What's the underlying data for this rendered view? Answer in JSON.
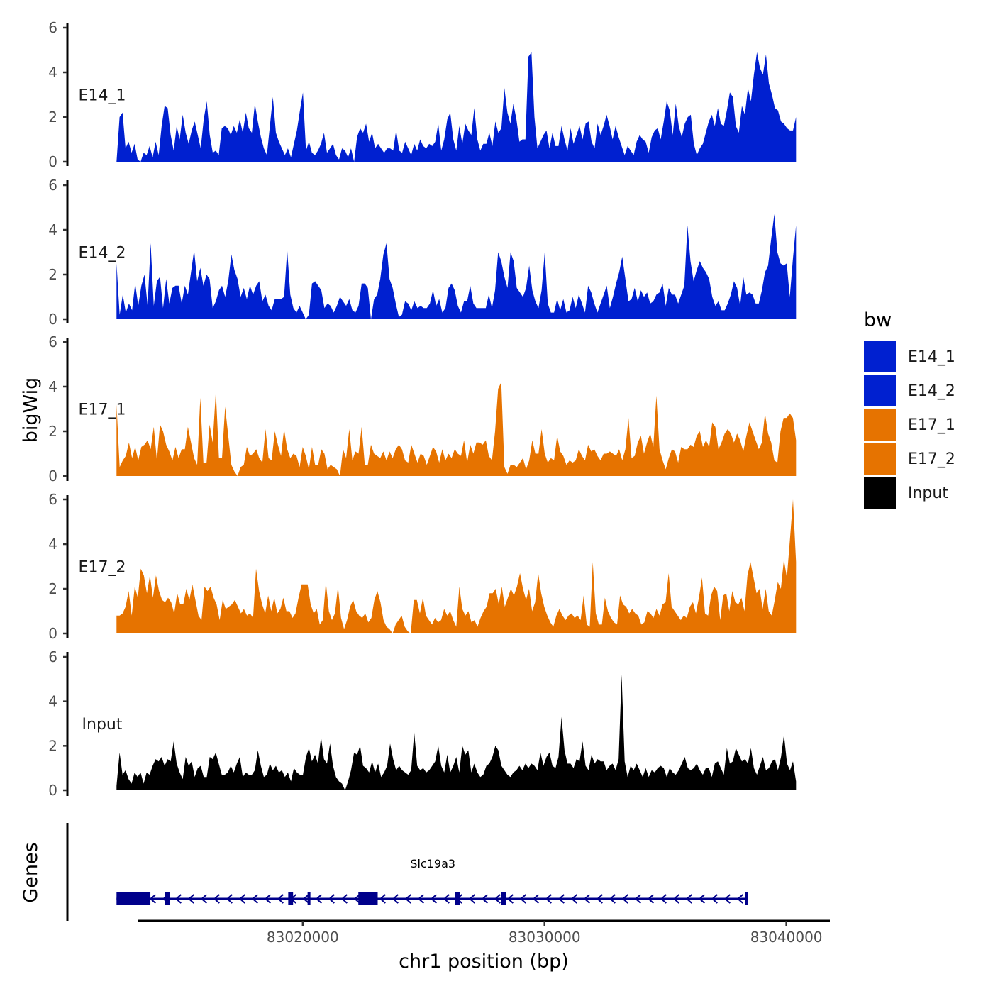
{
  "chart_data": {
    "type": "area",
    "chromosome": "chr1",
    "xlabel": "chr1 position (bp)",
    "ylabel": "bigWig",
    "genes_label": "Genes",
    "xlim": [
      83013200,
      83041800
    ],
    "region": [
      83012300,
      83040400
    ],
    "ylim": [
      0,
      6
    ],
    "yticks": [
      0,
      2,
      4,
      6
    ],
    "xticks": [
      {
        "value": 83020000,
        "label": "83020000"
      },
      {
        "value": 83030000,
        "label": "83030000"
      },
      {
        "value": 83040000,
        "label": "83040000"
      }
    ],
    "legend": {
      "title": "bw",
      "position": "right",
      "entries": [
        {
          "label": "E14_1",
          "color": "#0020D0"
        },
        {
          "label": "E14_2",
          "color": "#0020D0"
        },
        {
          "label": "E17_1",
          "color": "#E67300"
        },
        {
          "label": "E17_2",
          "color": "#E67300"
        },
        {
          "label": "Input",
          "color": "#000000"
        }
      ]
    },
    "series": [
      {
        "name": "E14_1",
        "color": "#0020D0",
        "x_start": 83012300,
        "x_end": 83040400,
        "values": [
          0,
          2.0,
          2.2,
          0.6,
          0.9,
          0.4,
          0.8,
          0.1,
          0,
          0.4,
          0.3,
          0.7,
          0.2,
          0.9,
          0.3,
          1.6,
          2.5,
          2.4,
          1.2,
          0.5,
          1.6,
          1.0,
          2.1,
          1.3,
          0.8,
          1.4,
          1.8,
          1.2,
          0.6,
          1.9,
          2.7,
          1.2,
          0.4,
          0.5,
          0.3,
          1.5,
          1.6,
          1.5,
          1.2,
          1.6,
          1.3,
          1.9,
          1.3,
          2.2,
          1.5,
          1.3,
          2.6,
          1.8,
          1.1,
          0.6,
          0.3,
          1.6,
          2.9,
          1.3,
          0.9,
          0.6,
          0.3,
          0.6,
          0.2,
          0.8,
          1.4,
          2.3,
          3.1,
          0.5,
          0.9,
          0.4,
          0.3,
          0.5,
          0.8,
          1.3,
          0.4,
          0.6,
          0.8,
          0.3,
          0.1,
          0.6,
          0.5,
          0.2,
          0.6,
          0,
          1.1,
          1.5,
          1.3,
          1.7,
          0.9,
          1.3,
          0.6,
          0.8,
          0.6,
          0.4,
          0.6,
          0.6,
          0.5,
          1.4,
          0.5,
          0.4,
          0.9,
          0.6,
          0.3,
          0.8,
          0.5,
          1.0,
          0.7,
          0.6,
          0.8,
          0.7,
          0.9,
          1.7,
          0.5,
          1.0,
          1.9,
          2.2,
          1.0,
          0.5,
          1.6,
          0.8,
          1.7,
          1.4,
          1.2,
          2.4,
          1.0,
          0.5,
          0.8,
          0.8,
          1.3,
          0.7,
          1.8,
          1.3,
          1.5,
          3.3,
          2.2,
          1.7,
          2.6,
          1.9,
          0.9,
          1.0,
          1.0,
          4.7,
          4.9,
          2.0,
          0.6,
          0.9,
          1.2,
          1.4,
          0.6,
          1.3,
          0.7,
          0.7,
          1.6,
          1.0,
          0.5,
          1.5,
          0.8,
          1.2,
          1.6,
          1.0,
          1.7,
          1.8,
          0.9,
          0.6,
          1.7,
          1.2,
          1.6,
          2.1,
          1.6,
          1.0,
          1.6,
          1.1,
          0.7,
          0.3,
          0.7,
          0.5,
          0.3,
          0.9,
          1.2,
          1.0,
          0.9,
          0.4,
          1.1,
          1.4,
          1.5,
          1.0,
          1.8,
          2.7,
          2.3,
          1.2,
          2.6,
          1.6,
          1.1,
          1.7,
          2.0,
          2.1,
          0.8,
          0.3,
          0.6,
          0.8,
          1.3,
          1.8,
          2.1,
          1.6,
          2.4,
          1.7,
          1.6,
          2.3,
          3.1,
          2.9,
          1.6,
          1.3,
          2.5,
          2.1,
          3.3,
          2.7,
          3.9,
          4.9,
          4.2,
          3.9,
          4.8,
          3.5,
          3.0,
          2.4,
          2.3,
          1.8,
          1.7,
          1.5,
          1.4,
          1.4,
          2.0
        ]
      },
      {
        "name": "E14_2",
        "color": "#0020D0",
        "x_start": 83012300,
        "x_end": 83040400,
        "values": [
          2.5,
          0.2,
          1.1,
          0.3,
          0.7,
          0.4,
          1.6,
          0.6,
          1.5,
          2.0,
          0.6,
          3.4,
          0.6,
          1.7,
          1.9,
          0.5,
          1.8,
          0.7,
          1.4,
          1.5,
          1.5,
          0.7,
          1.5,
          1.1,
          2.1,
          3.1,
          1.7,
          2.3,
          1.5,
          2.0,
          1.8,
          0.5,
          0.8,
          1.3,
          1.5,
          1.0,
          1.7,
          2.9,
          2.2,
          1.8,
          1.0,
          1.4,
          0.9,
          1.5,
          1.1,
          1.5,
          1.7,
          0.8,
          1.1,
          0.6,
          0.4,
          0.9,
          0.9,
          0.9,
          1.0,
          3.1,
          1.1,
          0.5,
          0.3,
          0.6,
          0.3,
          0,
          0.2,
          1.6,
          1.7,
          1.5,
          1.3,
          0.5,
          0.7,
          0.6,
          0.3,
          0.6,
          1.0,
          0.8,
          0.6,
          0.9,
          0.4,
          0.3,
          0.6,
          1.6,
          1.6,
          1.4,
          0,
          0.9,
          1.1,
          1.8,
          2.9,
          3.4,
          1.8,
          1.4,
          0.7,
          0.1,
          0.2,
          0.8,
          0.7,
          0.4,
          0.8,
          0.5,
          0.6,
          0.5,
          0.5,
          0.7,
          1.3,
          0.6,
          0.9,
          0.3,
          0.5,
          1.4,
          1.6,
          1.3,
          0.6,
          0.3,
          0.8,
          0.8,
          1.5,
          0.7,
          0.5,
          0.5,
          0.5,
          0.5,
          1.1,
          0.5,
          1.3,
          3.0,
          2.6,
          1.9,
          1.4,
          3.0,
          2.6,
          1.4,
          1.2,
          1.0,
          1.4,
          2.4,
          1.3,
          0.8,
          0.5,
          1.3,
          3.0,
          0.7,
          0.3,
          0.3,
          0.9,
          0.4,
          0.9,
          0.3,
          0.4,
          1.0,
          0.5,
          1.1,
          0.7,
          0.3,
          1.5,
          1.2,
          0.7,
          0.3,
          0.7,
          1.1,
          1.5,
          0.5,
          1.0,
          1.6,
          2.1,
          2.8,
          1.8,
          0.8,
          0.9,
          1.4,
          0.8,
          1.3,
          1.0,
          1.2,
          0.7,
          0.8,
          1.1,
          1.2,
          1.6,
          0.6,
          1.4,
          1.1,
          1.1,
          0.7,
          1.1,
          1.5,
          4.2,
          2.6,
          1.7,
          2.2,
          2.6,
          2.3,
          2.1,
          1.8,
          1.0,
          0.6,
          0.8,
          0.4,
          0.4,
          0.7,
          1.1,
          1.7,
          1.4,
          0.6,
          1.9,
          1.1,
          1.2,
          1.1,
          0.7,
          0.7,
          1.3,
          2.1,
          2.4,
          3.6,
          4.7,
          3.0,
          2.5,
          2.4,
          2.5,
          1.0,
          2.7,
          4.2
        ]
      },
      {
        "name": "E17_1",
        "color": "#E67300",
        "x_start": 83012300,
        "x_end": 83040400,
        "values": [
          3.2,
          0.4,
          0.7,
          0.9,
          1.5,
          0.8,
          1.3,
          0.7,
          1.3,
          1.4,
          1.6,
          1.2,
          2.2,
          0.7,
          2.3,
          2.0,
          1.4,
          1.1,
          0.7,
          1.3,
          0.8,
          1.2,
          1.2,
          2.2,
          1.5,
          0.8,
          0.5,
          3.5,
          0.6,
          0.6,
          2.3,
          1.5,
          3.8,
          0.8,
          0.8,
          3.1,
          1.8,
          0.5,
          0.2,
          0,
          0.4,
          0.5,
          1.3,
          0.9,
          1.0,
          1.2,
          0.8,
          0.6,
          2.1,
          0.8,
          0.7,
          2.0,
          1.4,
          0.9,
          2.1,
          1.2,
          0.8,
          1.0,
          0.9,
          0.4,
          1.3,
          0.9,
          0.3,
          1.3,
          0.5,
          0.5,
          1.2,
          1.0,
          0.3,
          0.5,
          0.4,
          0.3,
          0,
          1.2,
          0.8,
          2.1,
          0.7,
          1.1,
          1.0,
          2.2,
          0.5,
          0.5,
          1.4,
          1.0,
          0.9,
          0.8,
          1.1,
          0.7,
          1.1,
          0.8,
          1.2,
          1.4,
          1.2,
          0.7,
          0.6,
          1.4,
          1.0,
          0.6,
          1.0,
          0.9,
          0.5,
          0.9,
          1.3,
          1.1,
          0.6,
          1.2,
          0.7,
          1.0,
          0.8,
          1.2,
          1.0,
          0.9,
          1.6,
          0.6,
          1.4,
          1.0,
          1.5,
          1.5,
          1.4,
          1.6,
          0.9,
          0.7,
          2.0,
          3.9,
          4.2,
          0.4,
          0.1,
          0.5,
          0.5,
          0.4,
          0.6,
          0.8,
          0.3,
          0.7,
          1.6,
          1.0,
          1.0,
          2.1,
          1.0,
          0.6,
          0.8,
          0.7,
          1.8,
          1.1,
          0.9,
          0.5,
          0.7,
          0.6,
          0.7,
          1.2,
          0.9,
          0.7,
          1.4,
          1.1,
          1.2,
          0.9,
          0.7,
          1.0,
          1.0,
          1.1,
          1.0,
          0.9,
          1.2,
          0.7,
          1.2,
          2.6,
          0.8,
          0.9,
          1.5,
          1.8,
          1.0,
          1.5,
          1.9,
          1.3,
          3.6,
          1.2,
          0.7,
          0.3,
          0.8,
          1.2,
          1.1,
          0.6,
          1.3,
          1.2,
          1.2,
          1.4,
          1.3,
          1.8,
          2.0,
          1.3,
          1.6,
          1.3,
          2.4,
          2.2,
          1.2,
          1.5,
          1.9,
          2.1,
          1.9,
          1.5,
          1.9,
          1.6,
          1.1,
          1.8,
          2.4,
          2.0,
          1.6,
          1.2,
          1.5,
          2.8,
          1.9,
          1.5,
          0.7,
          0.6,
          2.0,
          2.6,
          2.6,
          2.8,
          2.6,
          1.6
        ]
      },
      {
        "name": "E17_2",
        "color": "#E67300",
        "x_start": 83012300,
        "x_end": 83040400,
        "values": [
          0.8,
          0.8,
          0.9,
          1.2,
          1.9,
          0.8,
          2.1,
          1.6,
          2.9,
          2.6,
          1.8,
          2.6,
          1.6,
          2.6,
          1.9,
          1.5,
          1.4,
          1.6,
          1.4,
          0.9,
          1.8,
          1.3,
          1.3,
          2.0,
          1.5,
          2.2,
          1.5,
          0.8,
          0.6,
          2.1,
          1.9,
          2.1,
          1.6,
          1.3,
          0.6,
          1.5,
          1.1,
          1.2,
          1.3,
          1.5,
          1.2,
          0.9,
          1.1,
          0.8,
          0.9,
          0.7,
          2.9,
          1.9,
          1.3,
          0.9,
          1.7,
          1.0,
          1.6,
          0.9,
          1.1,
          1.6,
          1.0,
          1.0,
          0.7,
          0.9,
          1.6,
          2.2,
          2.2,
          2.2,
          1.3,
          0.9,
          1.1,
          0.4,
          0.6,
          2.3,
          1.0,
          0.6,
          0.9,
          2.1,
          0.7,
          0.2,
          0.6,
          1.2,
          1.5,
          1.0,
          0.8,
          0.7,
          0.9,
          0.5,
          0.7,
          1.5,
          1.9,
          1.4,
          0.6,
          0.3,
          0.2,
          0,
          0.4,
          0.6,
          0.8,
          0.3,
          0.1,
          0,
          1.5,
          1.5,
          0.9,
          1.6,
          0.8,
          0.6,
          0.4,
          0.7,
          0.5,
          0.6,
          1.1,
          0.8,
          1.0,
          0.6,
          0.3,
          2.1,
          1.1,
          0.8,
          1.0,
          0.5,
          0.6,
          0.3,
          0.7,
          1.0,
          1.2,
          1.8,
          1.8,
          2.0,
          1.3,
          2.1,
          1.2,
          1.6,
          2.0,
          1.7,
          2.1,
          2.7,
          2.0,
          1.5,
          2.0,
          1.0,
          1.4,
          2.7,
          1.8,
          1.2,
          0.8,
          0.5,
          0.3,
          0.8,
          1.1,
          0.8,
          0.6,
          0.8,
          0.9,
          0.7,
          0.8,
          0.6,
          1.7,
          0.4,
          0.3,
          3.2,
          0.9,
          0.4,
          0.4,
          1.6,
          1.0,
          0.7,
          0.5,
          0.4,
          1.7,
          1.3,
          1.2,
          0.9,
          1.1,
          0.9,
          0.8,
          0.4,
          0.5,
          1.0,
          0.9,
          0.7,
          1.1,
          0.8,
          1.3,
          1.4,
          2.7,
          1.2,
          1.0,
          0.8,
          0.6,
          0.8,
          0.7,
          1.2,
          1.4,
          0.9,
          1.6,
          2.5,
          0.9,
          0.8,
          1.7,
          2.1,
          1.9,
          0.6,
          1.7,
          1.8,
          1.0,
          1.9,
          1.4,
          1.3,
          1.6,
          1.0,
          2.6,
          3.2,
          2.5,
          1.8,
          2.0,
          1.1,
          2.0,
          1.0,
          0.8,
          1.5,
          2.3,
          2.0,
          3.3,
          2.5,
          4.2,
          6.0,
          3.2
        ]
      },
      {
        "name": "Input",
        "color": "#000000",
        "x_start": 83012300,
        "x_end": 83040400,
        "values": [
          0.2,
          1.7,
          0.7,
          0.9,
          0.5,
          0.3,
          0.8,
          0.6,
          0.8,
          0.3,
          0.8,
          0.7,
          1.1,
          1.4,
          1.3,
          1.5,
          1.1,
          1.4,
          1.3,
          2.2,
          1.2,
          0.8,
          0.5,
          1.5,
          1.1,
          1.3,
          0.6,
          1.0,
          1.1,
          0.6,
          0.6,
          1.5,
          1.4,
          1.7,
          1.2,
          0.7,
          0.7,
          0.8,
          1.1,
          0.8,
          1.2,
          1.5,
          0.6,
          0.8,
          0.7,
          0.7,
          0.9,
          1.8,
          1.1,
          0.6,
          0.7,
          1.2,
          0.9,
          1.1,
          0.8,
          0.9,
          0.6,
          0.8,
          0.4,
          1.0,
          0.8,
          0.7,
          0.7,
          1.5,
          1.9,
          1.3,
          1.6,
          1.2,
          2.4,
          1.4,
          1.2,
          2.1,
          1.1,
          0.6,
          0.4,
          0.3,
          0,
          0.4,
          0.9,
          1.7,
          1.6,
          2.0,
          1.1,
          1.0,
          0.8,
          1.3,
          0.8,
          1.2,
          0.6,
          0.8,
          1.1,
          2.1,
          1.4,
          0.9,
          1.1,
          0.9,
          0.8,
          0.7,
          0.9,
          2.6,
          1.1,
          0.9,
          1.0,
          0.8,
          0.9,
          1.1,
          1.3,
          2.0,
          1.1,
          0.8,
          1.6,
          0.8,
          1.1,
          1.5,
          0.8,
          2.0,
          1.6,
          1.8,
          0.8,
          1.2,
          0.8,
          0.6,
          0.7,
          1.1,
          1.2,
          1.5,
          2.0,
          1.8,
          1.1,
          0.9,
          0.7,
          0.6,
          0.8,
          0.9,
          1.1,
          0.9,
          1.2,
          1.0,
          1.2,
          1.1,
          0.9,
          1.7,
          1.1,
          1.5,
          1.7,
          1.1,
          1.0,
          1.5,
          3.3,
          1.8,
          1.2,
          1.2,
          1.0,
          1.4,
          1.3,
          2.2,
          1.1,
          0.9,
          1.6,
          1.2,
          1.4,
          1.3,
          1.3,
          0.9,
          1.1,
          1.2,
          0.9,
          1.4,
          5.2,
          1.3,
          0.6,
          1.1,
          0.9,
          1.2,
          0.9,
          0.6,
          1.0,
          0.6,
          0.9,
          0.8,
          1.0,
          1.1,
          1.0,
          0.6,
          1.0,
          0.8,
          0.7,
          0.9,
          1.2,
          1.5,
          1.0,
          0.9,
          1.0,
          1.2,
          0.9,
          0.7,
          1.0,
          1.0,
          0.6,
          1.2,
          1.3,
          1.0,
          0.7,
          1.9,
          1.2,
          1.3,
          1.9,
          1.6,
          1.3,
          1.4,
          1.2,
          1.9,
          1.0,
          0.7,
          1.1,
          1.5,
          0.9,
          1.0,
          1.3,
          1.4,
          0.9,
          1.5,
          2.5,
          1.2,
          0.9,
          1.3,
          0.4
        ]
      }
    ],
    "genes": [
      {
        "name": "Slc19a3",
        "strand": "-",
        "color": "#00008B",
        "start": 83012300,
        "end": 83038400,
        "exons": [
          {
            "start": 83012300,
            "end": 83013700
          },
          {
            "start": 83014300,
            "end": 83014500
          },
          {
            "start": 83019400,
            "end": 83019600
          },
          {
            "start": 83020200,
            "end": 83020300
          },
          {
            "start": 83022300,
            "end": 83023100
          },
          {
            "start": 83026300,
            "end": 83026500
          },
          {
            "start": 83028200,
            "end": 83028400
          },
          {
            "start": 83038300,
            "end": 83038400
          }
        ]
      }
    ]
  }
}
